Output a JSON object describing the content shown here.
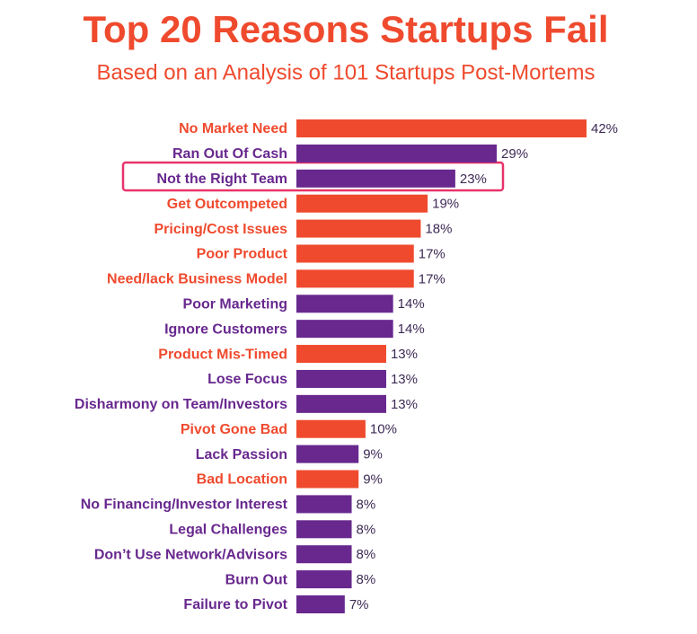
{
  "chart_data": {
    "type": "bar",
    "orientation": "horizontal",
    "title": "Top 20 Reasons Startups Fail",
    "subtitle": "Based on an Analysis of 101 Startups Post-Mortems",
    "categories": [
      "No Market Need",
      "Ran Out Of Cash",
      "Not the Right Team",
      "Get Outcompeted",
      "Pricing/Cost Issues",
      "Poor Product",
      "Need/lack Business Model",
      "Poor Marketing",
      "Ignore Customers",
      "Product Mis-Timed",
      "Lose Focus",
      "Disharmony on Team/Investors",
      "Pivot Gone Bad",
      "Lack Passion",
      "Bad Location",
      "No Financing/Investor Interest",
      "Legal Challenges",
      "Don’t Use Network/Advisors",
      "Burn Out",
      "Failure to Pivot"
    ],
    "values": [
      42,
      29,
      23,
      19,
      18,
      17,
      17,
      14,
      14,
      13,
      13,
      13,
      10,
      9,
      9,
      8,
      8,
      8,
      8,
      7
    ],
    "value_labels": [
      "42%",
      "29%",
      "23%",
      "19%",
      "18%",
      "17%",
      "17%",
      "14%",
      "14%",
      "13%",
      "13%",
      "13%",
      "10%",
      "9%",
      "9%",
      "8%",
      "8%",
      "8%",
      "8%",
      "7%"
    ],
    "colors": [
      "#ef4a2e",
      "#68288e",
      "#68288e",
      "#ef4a2e",
      "#ef4a2e",
      "#ef4a2e",
      "#ef4a2e",
      "#68288e",
      "#68288e",
      "#ef4a2e",
      "#68288e",
      "#68288e",
      "#ef4a2e",
      "#68288e",
      "#ef4a2e",
      "#68288e",
      "#68288e",
      "#68288e",
      "#68288e",
      "#68288e"
    ],
    "xlim": [
      0,
      42
    ]
  }
}
